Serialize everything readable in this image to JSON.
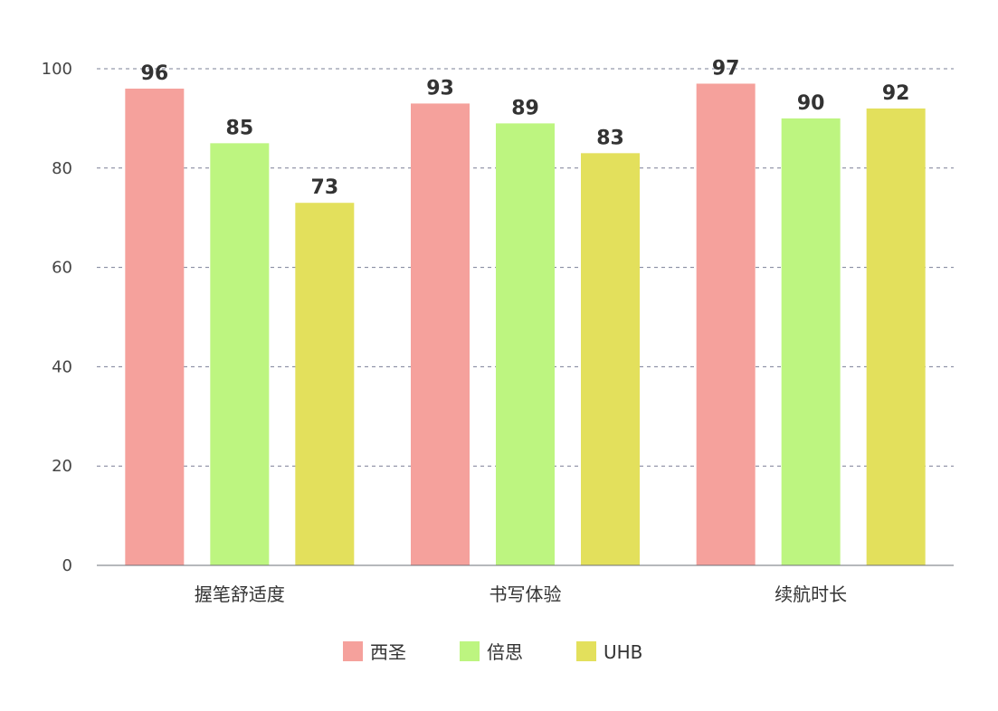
{
  "chart_data": {
    "type": "bar",
    "categories": [
      "握笔舒适度",
      "书写体验",
      "续航时长"
    ],
    "series": [
      {
        "name": "西圣",
        "color": "#f5a19c",
        "values": [
          96,
          93,
          97
        ]
      },
      {
        "name": "倍思",
        "color": "#bdf580",
        "values": [
          85,
          89,
          90
        ]
      },
      {
        "name": "UHB",
        "color": "#e3e05c",
        "values": [
          73,
          83,
          92
        ]
      }
    ],
    "title": "",
    "xlabel": "",
    "ylabel": "",
    "ylim": [
      0,
      100
    ],
    "yticks": [
      0,
      20,
      40,
      60,
      80,
      100
    ],
    "grid": true,
    "grid_style": "dashed",
    "legend_position": "bottom-center",
    "data_labels": true
  }
}
